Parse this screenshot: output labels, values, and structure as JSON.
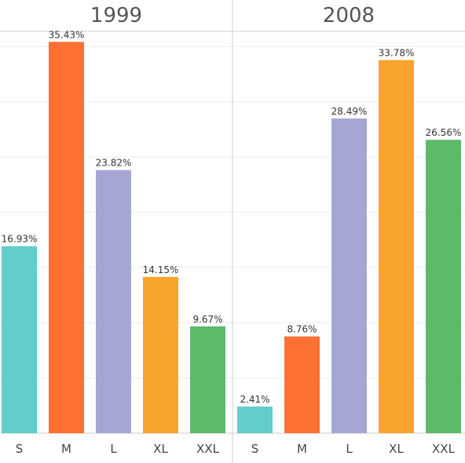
{
  "chart_data": {
    "type": "bar",
    "ylim": [
      0,
      40
    ],
    "grid": true,
    "panels": [
      {
        "title": "1999",
        "categories": [
          "S",
          "M",
          "L",
          "XL",
          "XXL"
        ],
        "values": [
          16.93,
          35.43,
          23.82,
          14.15,
          9.67
        ],
        "labels": [
          "16.93%",
          "35.43%",
          "23.82%",
          "14.15%",
          "9.67%"
        ]
      },
      {
        "title": "2008",
        "categories": [
          "S",
          "M",
          "L",
          "XL",
          "XXL"
        ],
        "values": [
          2.41,
          8.76,
          28.49,
          33.78,
          26.56
        ],
        "labels": [
          "2.41%",
          "8.76%",
          "28.49%",
          "33.78%",
          "26.56%"
        ]
      }
    ],
    "colors": {
      "S": "#63cdca",
      "M": "#ff7033",
      "L": "#a6a6d4",
      "XL": "#f9a42c",
      "XXL": "#5dba68"
    }
  }
}
